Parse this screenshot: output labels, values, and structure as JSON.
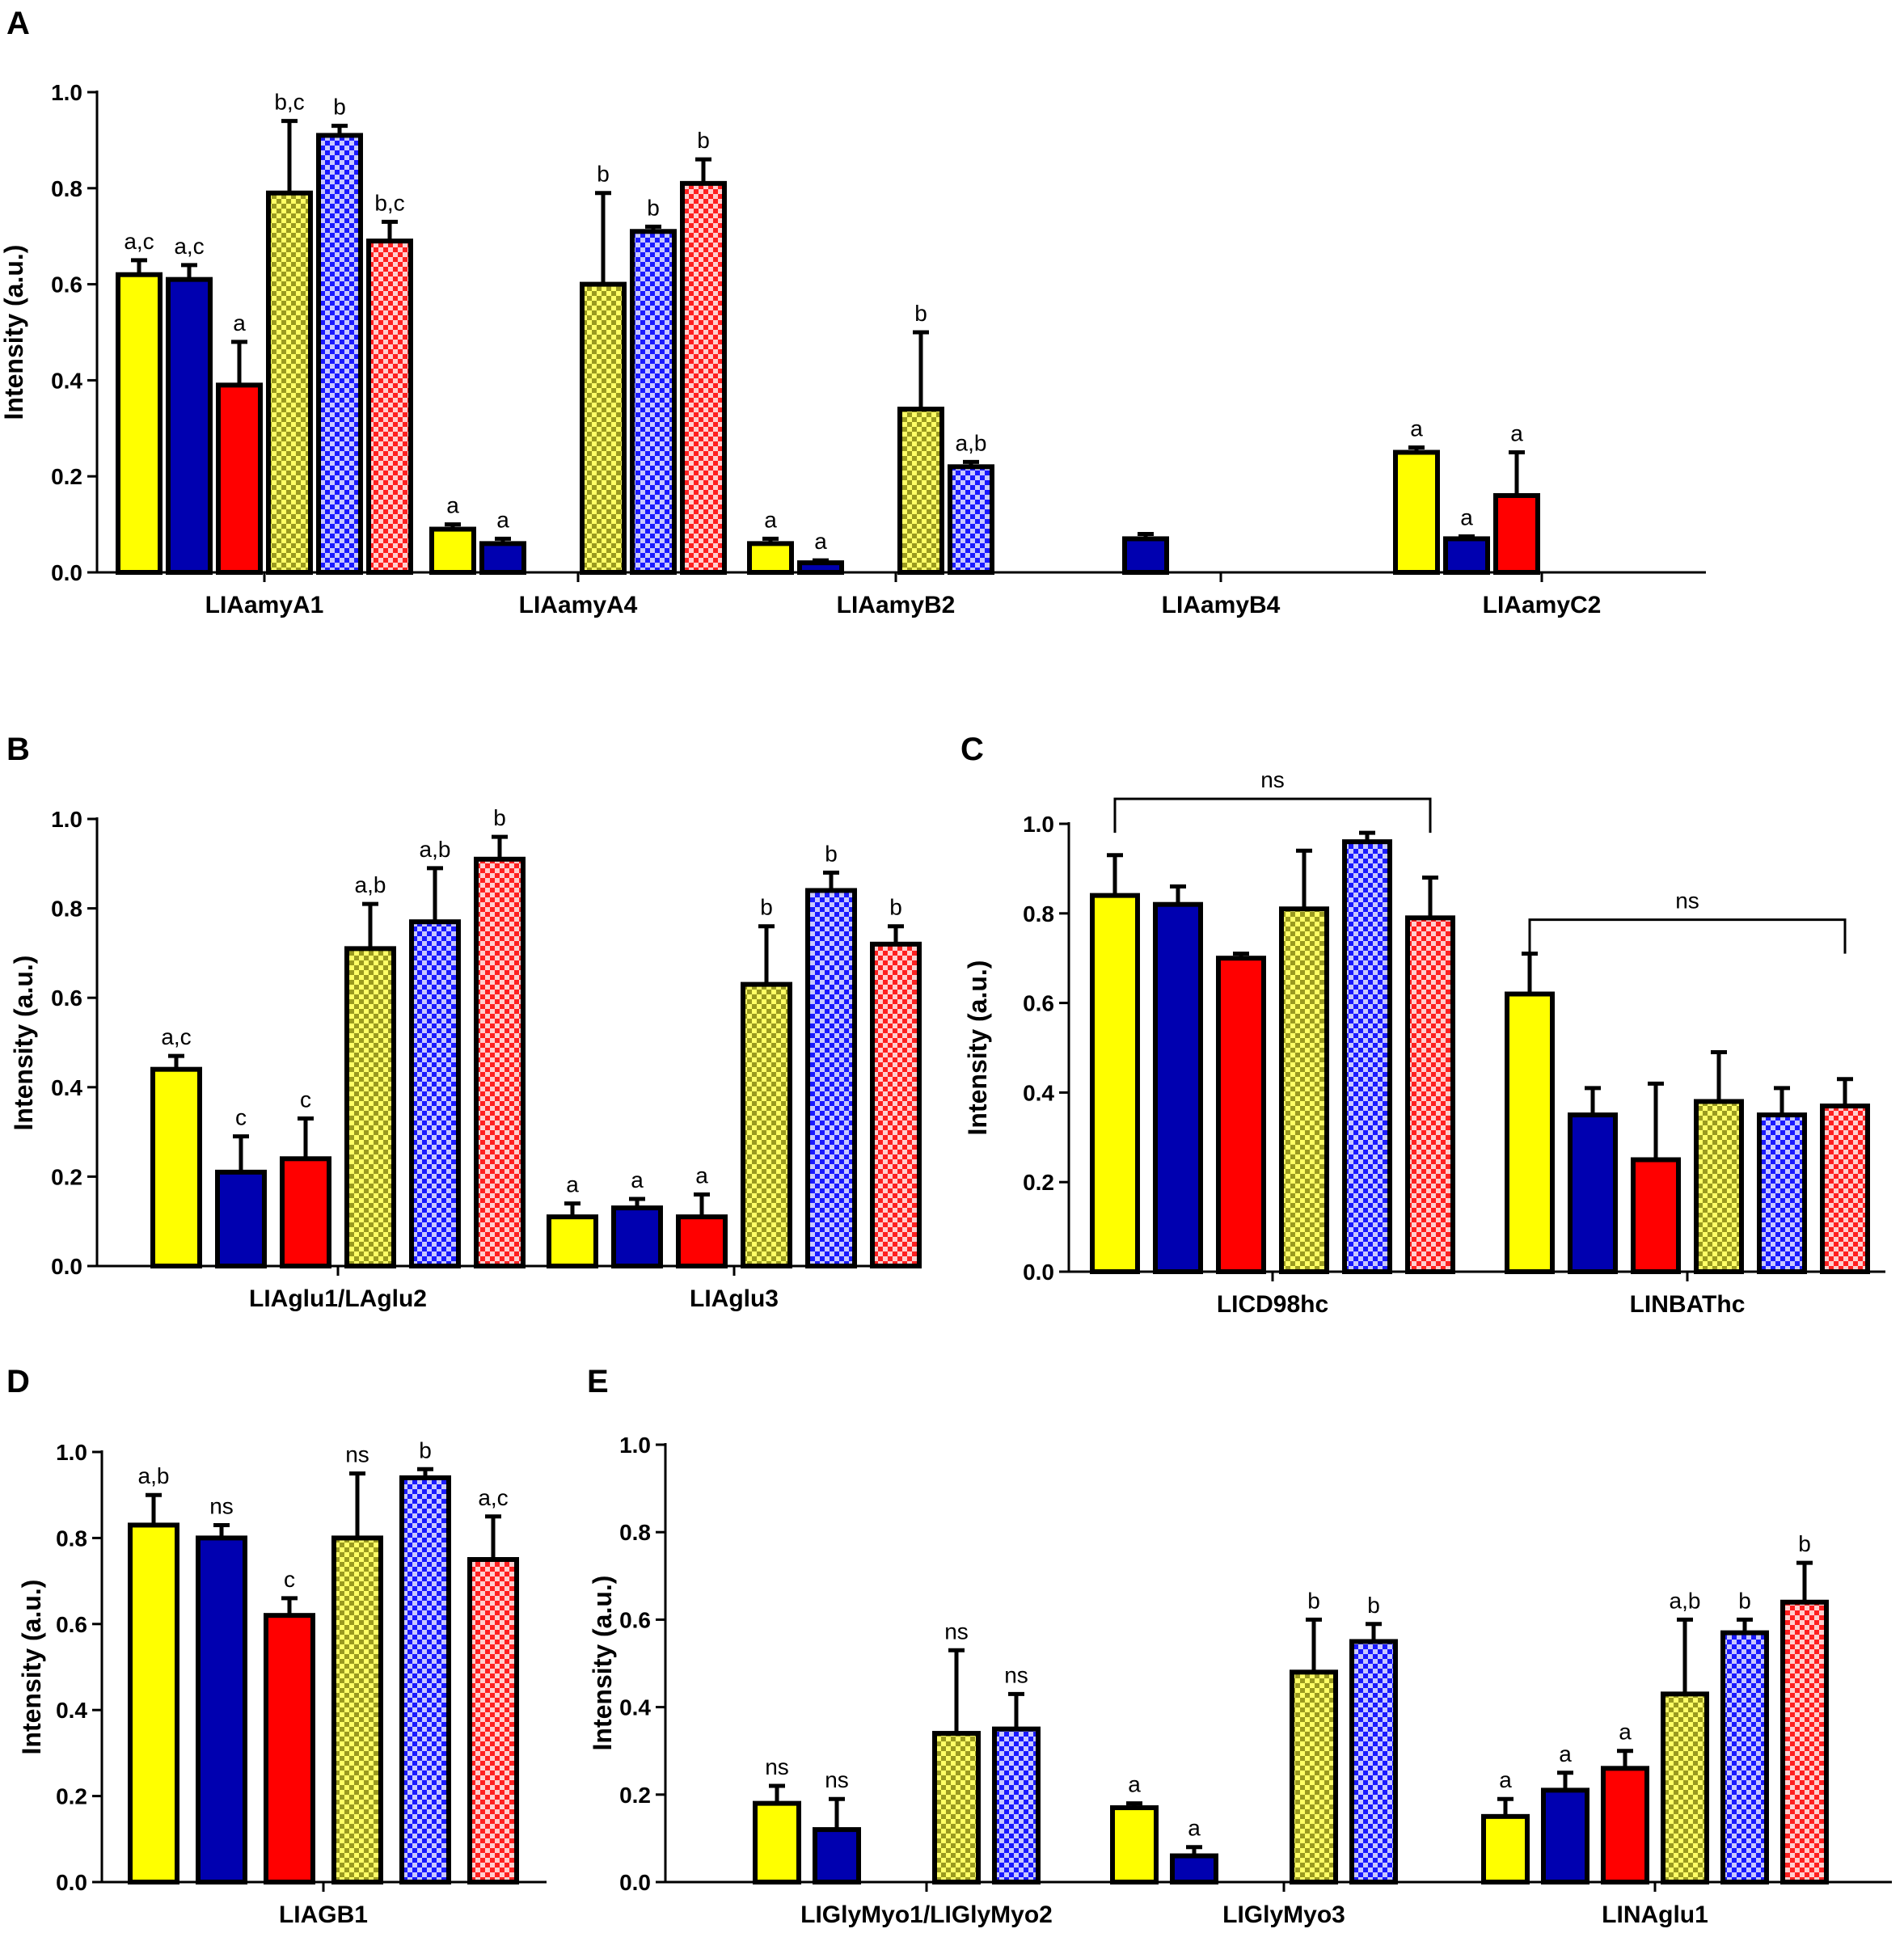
{
  "colors": {
    "yellow": "#ffff00",
    "blue": "#0000b0",
    "red": "#ff0000",
    "yellow_check_a": "#ffff66",
    "yellow_check_b": "#9a9a20",
    "blue_check_a": "#c8c8ff",
    "blue_check_b": "#1a1aff",
    "red_check_a": "#ffd0d0",
    "red_check_b": "#ff2020"
  },
  "series_styles": [
    "yellow",
    "blue",
    "red",
    "yellow-check",
    "blue-check",
    "red-check"
  ],
  "chart_data": [
    {
      "panel": "A",
      "type": "bar",
      "ylabel": "Intensity (a.u.)",
      "ylim": [
        0,
        1.0
      ],
      "yticks": [
        "0.0",
        "0.2",
        "0.4",
        "0.6",
        "0.8",
        "1.0"
      ],
      "categories": [
        {
          "label": "LIAamyA1",
          "bars": [
            {
              "s": 0,
              "value": 0.62,
              "err": 0.03,
              "sig": "a,c"
            },
            {
              "s": 1,
              "value": 0.61,
              "err": 0.03,
              "sig": "a,c"
            },
            {
              "s": 2,
              "value": 0.39,
              "err": 0.09,
              "sig": "a"
            },
            {
              "s": 3,
              "value": 0.79,
              "err": 0.15,
              "sig": "b,c"
            },
            {
              "s": 4,
              "value": 0.91,
              "err": 0.02,
              "sig": "b"
            },
            {
              "s": 5,
              "value": 0.69,
              "err": 0.04,
              "sig": "b,c"
            }
          ]
        },
        {
          "label": "LIAamyA4",
          "bars": [
            {
              "s": 0,
              "value": 0.09,
              "err": 0.01,
              "sig": "a"
            },
            {
              "s": 1,
              "value": 0.06,
              "err": 0.01,
              "sig": "a"
            },
            {
              "s": 2,
              "value": null
            },
            {
              "s": 3,
              "value": 0.6,
              "err": 0.19,
              "sig": "b"
            },
            {
              "s": 4,
              "value": 0.71,
              "err": 0.01,
              "sig": "b"
            },
            {
              "s": 5,
              "value": 0.81,
              "err": 0.05,
              "sig": "b"
            }
          ]
        },
        {
          "label": "LIAamyB2",
          "bars": [
            {
              "s": 0,
              "value": 0.06,
              "err": 0.01,
              "sig": "a"
            },
            {
              "s": 1,
              "value": 0.02,
              "err": 0.005,
              "sig": "a"
            },
            {
              "s": 2,
              "value": null
            },
            {
              "s": 3,
              "value": 0.34,
              "err": 0.16,
              "sig": "b"
            },
            {
              "s": 4,
              "value": 0.22,
              "err": 0.01,
              "sig": "a,b"
            },
            {
              "s": 5,
              "value": null
            }
          ]
        },
        {
          "label": "LIAamyB4",
          "bars": [
            {
              "s": 0,
              "value": null
            },
            {
              "s": 1,
              "value": 0.07,
              "err": 0.01,
              "sig": ""
            },
            {
              "s": 2,
              "value": null
            },
            {
              "s": 3,
              "value": null
            },
            {
              "s": 4,
              "value": null
            },
            {
              "s": 5,
              "value": null
            }
          ]
        },
        {
          "label": "LIAamyC2",
          "bars": [
            {
              "s": 0,
              "value": 0.25,
              "err": 0.01,
              "sig": "a"
            },
            {
              "s": 1,
              "value": 0.07,
              "err": 0.005,
              "sig": "a"
            },
            {
              "s": 2,
              "value": 0.16,
              "err": 0.09,
              "sig": "a"
            },
            {
              "s": 3,
              "value": null
            },
            {
              "s": 4,
              "value": null
            },
            {
              "s": 5,
              "value": null
            }
          ]
        }
      ]
    },
    {
      "panel": "B",
      "type": "bar",
      "ylabel": "Intensity (a.u.)",
      "ylim": [
        0,
        1.0
      ],
      "yticks": [
        "0.0",
        "0.2",
        "0.4",
        "0.6",
        "0.8",
        "1.0"
      ],
      "categories": [
        {
          "label": "LIAglu1/LAglu2",
          "bars": [
            {
              "s": 0,
              "value": 0.44,
              "err": 0.03,
              "sig": "a,c"
            },
            {
              "s": 1,
              "value": 0.21,
              "err": 0.08,
              "sig": "c"
            },
            {
              "s": 2,
              "value": 0.24,
              "err": 0.09,
              "sig": "c"
            },
            {
              "s": 3,
              "value": 0.71,
              "err": 0.1,
              "sig": "a,b"
            },
            {
              "s": 4,
              "value": 0.77,
              "err": 0.12,
              "sig": "a,b"
            },
            {
              "s": 5,
              "value": 0.91,
              "err": 0.05,
              "sig": "b"
            }
          ]
        },
        {
          "label": "LIAglu3",
          "bars": [
            {
              "s": 0,
              "value": 0.11,
              "err": 0.03,
              "sig": "a"
            },
            {
              "s": 1,
              "value": 0.13,
              "err": 0.02,
              "sig": "a"
            },
            {
              "s": 2,
              "value": 0.11,
              "err": 0.05,
              "sig": "a"
            },
            {
              "s": 3,
              "value": 0.63,
              "err": 0.13,
              "sig": "b"
            },
            {
              "s": 4,
              "value": 0.84,
              "err": 0.04,
              "sig": "b"
            },
            {
              "s": 5,
              "value": 0.72,
              "err": 0.04,
              "sig": "b"
            }
          ]
        }
      ]
    },
    {
      "panel": "C",
      "type": "bar",
      "ylabel": "Intensity (a.u.)",
      "ylim": [
        0,
        1.0
      ],
      "yticks": [
        "0.0",
        "0.2",
        "0.4",
        "0.6",
        "0.8",
        "1.0"
      ],
      "brackets": [
        {
          "category": 0,
          "label": "ns"
        },
        {
          "category": 1,
          "label": "ns"
        }
      ],
      "categories": [
        {
          "label": "LICD98hc",
          "bars": [
            {
              "s": 0,
              "value": 0.84,
              "err": 0.09,
              "sig": ""
            },
            {
              "s": 1,
              "value": 0.82,
              "err": 0.04,
              "sig": ""
            },
            {
              "s": 2,
              "value": 0.7,
              "err": 0.01,
              "sig": ""
            },
            {
              "s": 3,
              "value": 0.81,
              "err": 0.13,
              "sig": ""
            },
            {
              "s": 4,
              "value": 0.96,
              "err": 0.02,
              "sig": ""
            },
            {
              "s": 5,
              "value": 0.79,
              "err": 0.09,
              "sig": ""
            }
          ]
        },
        {
          "label": "LINBAThc",
          "bars": [
            {
              "s": 0,
              "value": 0.62,
              "err": 0.09,
              "sig": ""
            },
            {
              "s": 1,
              "value": 0.35,
              "err": 0.06,
              "sig": ""
            },
            {
              "s": 2,
              "value": 0.25,
              "err": 0.17,
              "sig": ""
            },
            {
              "s": 3,
              "value": 0.38,
              "err": 0.11,
              "sig": ""
            },
            {
              "s": 4,
              "value": 0.35,
              "err": 0.06,
              "sig": ""
            },
            {
              "s": 5,
              "value": 0.37,
              "err": 0.06,
              "sig": ""
            }
          ]
        }
      ]
    },
    {
      "panel": "D",
      "type": "bar",
      "ylabel": "Intensity (a.u.)",
      "ylim": [
        0,
        1.0
      ],
      "yticks": [
        "0.0",
        "0.2",
        "0.4",
        "0.6",
        "0.8",
        "1.0"
      ],
      "categories": [
        {
          "label": "LIAGB1",
          "bars": [
            {
              "s": 0,
              "value": 0.83,
              "err": 0.07,
              "sig": "a,b"
            },
            {
              "s": 1,
              "value": 0.8,
              "err": 0.03,
              "sig": "ns"
            },
            {
              "s": 2,
              "value": 0.62,
              "err": 0.04,
              "sig": "c"
            },
            {
              "s": 3,
              "value": 0.8,
              "err": 0.15,
              "sig": "ns"
            },
            {
              "s": 4,
              "value": 0.94,
              "err": 0.02,
              "sig": "b"
            },
            {
              "s": 5,
              "value": 0.75,
              "err": 0.1,
              "sig": "a,c"
            }
          ]
        }
      ]
    },
    {
      "panel": "E",
      "type": "bar",
      "ylabel": "Intensity (a.u.)",
      "ylim": [
        0,
        1.0
      ],
      "yticks": [
        "0.0",
        "0.2",
        "0.4",
        "0.6",
        "0.8",
        "1.0"
      ],
      "categories": [
        {
          "label": "LIGlyMyo1/LIGlyMyo2",
          "bars": [
            {
              "s": 0,
              "value": 0.18,
              "err": 0.04,
              "sig": "ns"
            },
            {
              "s": 1,
              "value": 0.12,
              "err": 0.07,
              "sig": "ns"
            },
            {
              "s": 2,
              "value": null
            },
            {
              "s": 3,
              "value": 0.34,
              "err": 0.19,
              "sig": "ns"
            },
            {
              "s": 4,
              "value": 0.35,
              "err": 0.08,
              "sig": "ns"
            },
            {
              "s": 5,
              "value": null
            }
          ]
        },
        {
          "label": "LIGlyMyo3",
          "bars": [
            {
              "s": 0,
              "value": 0.17,
              "err": 0.01,
              "sig": "a"
            },
            {
              "s": 1,
              "value": 0.06,
              "err": 0.02,
              "sig": "a"
            },
            {
              "s": 2,
              "value": null
            },
            {
              "s": 3,
              "value": 0.48,
              "err": 0.12,
              "sig": "b"
            },
            {
              "s": 4,
              "value": 0.55,
              "err": 0.04,
              "sig": "b"
            },
            {
              "s": 5,
              "value": null
            }
          ]
        },
        {
          "label": "LINAglu1",
          "bars": [
            {
              "s": 0,
              "value": 0.15,
              "err": 0.04,
              "sig": "a"
            },
            {
              "s": 1,
              "value": 0.21,
              "err": 0.04,
              "sig": "a"
            },
            {
              "s": 2,
              "value": 0.26,
              "err": 0.04,
              "sig": "a"
            },
            {
              "s": 3,
              "value": 0.43,
              "err": 0.17,
              "sig": "a,b"
            },
            {
              "s": 4,
              "value": 0.57,
              "err": 0.03,
              "sig": "b"
            },
            {
              "s": 5,
              "value": 0.64,
              "err": 0.09,
              "sig": "b"
            }
          ]
        }
      ]
    }
  ]
}
